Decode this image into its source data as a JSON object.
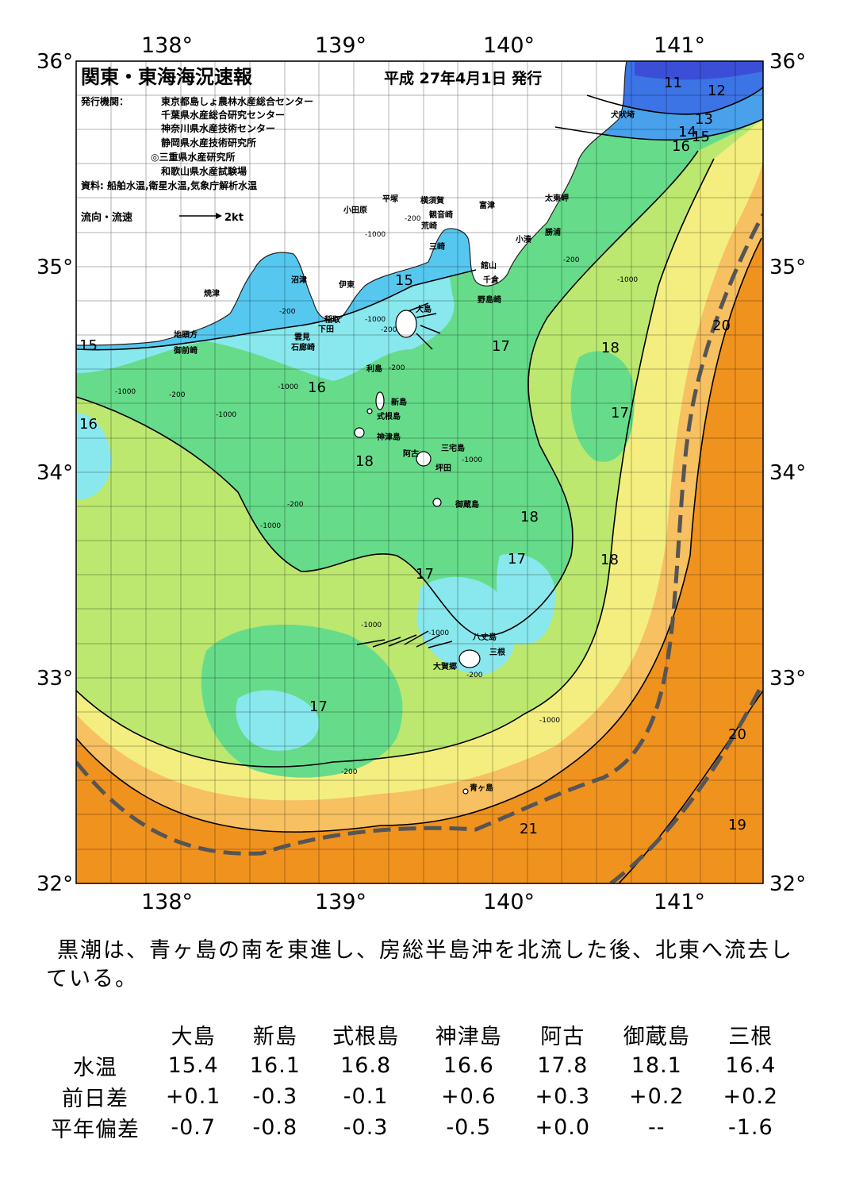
{
  "map": {
    "title": "関東・東海海況速報",
    "issue_date": "平成 27年4月1日 発行",
    "publisher_label": "発行機関：",
    "publishers": [
      "東京都島しょ農林水産総合センター",
      "千葉県水産総合研究センター",
      "神奈川県水産技術センター",
      "静岡県水産技術研究所",
      "◎三重県水産研究所",
      "和歌山県水産試験場"
    ],
    "source": "資料: 船舶水温,衛星水温,気象庁解析水温",
    "legend_label": "流向・流速",
    "legend_scale": "2kt",
    "lon_ticks": [
      "138°",
      "139°",
      "140°",
      "141°"
    ],
    "lat_ticks": [
      "36°",
      "35°",
      "34°",
      "33°",
      "32°"
    ],
    "place_names": [
      "犬吠埼",
      "太東岬",
      "勝浦",
      "小湊",
      "富津",
      "館山",
      "千倉",
      "野島崎",
      "横須賀",
      "観音崎",
      "平塚",
      "荒崎",
      "三崎",
      "小田原",
      "沼津",
      "伊東",
      "稲取",
      "下田",
      "雲見",
      "石廊崎",
      "焼津",
      "地頭方",
      "御前崎",
      "大島",
      "利島",
      "新島",
      "式根島",
      "神津島",
      "三宅島",
      "阿古",
      "坪田",
      "御蔵島",
      "八丈島",
      "三根",
      "大賀郷",
      "青ヶ島"
    ],
    "isotherm_labels": [
      "11",
      "12",
      "13",
      "14",
      "15",
      "16",
      "15",
      "15",
      "17",
      "18",
      "16",
      "16",
      "17",
      "18",
      "18",
      "17",
      "18",
      "17",
      "17",
      "20",
      "20",
      "21",
      "19"
    ],
    "depth_labels": [
      "-200",
      "-1000",
      "-200",
      "-1000",
      "-200",
      "-200",
      "-1000",
      "-1000",
      "-200",
      "-1000",
      "-200",
      "-1000",
      "-1000",
      "-200",
      "-1000",
      "-1000",
      "-1000",
      "-200",
      "-1000",
      "-200"
    ],
    "colors": {
      "sea_12": "#3a4fd6",
      "sea_13": "#3c74e6",
      "sea_14": "#49a1ec",
      "sea_15": "#56c8f0",
      "sea_16": "#88e8ee",
      "sea_17": "#66dc8a",
      "sea_18": "#bce870",
      "sea_19": "#f4ee80",
      "sea_20": "#f7c060",
      "sea_21": "#f0921e",
      "kuroshio_axis": "#555555",
      "land": "#ffffff"
    }
  },
  "summary": "黒潮は、青ヶ島の南を東進し、房総半島沖を北流した後、北東へ流去している。",
  "table": {
    "stations": [
      "大島",
      "新島",
      "式根島",
      "神津島",
      "阿古",
      "御蔵島",
      "三根"
    ],
    "rows": [
      {
        "label": "水温",
        "values": [
          "15.4",
          "16.1",
          "16.8",
          "16.6",
          "17.8",
          "18.1",
          "16.4"
        ]
      },
      {
        "label": "前日差",
        "values": [
          "+0.1",
          "-0.3",
          "-0.1",
          "+0.6",
          "+0.3",
          "+0.2",
          "+0.2"
        ]
      },
      {
        "label": "平年偏差",
        "values": [
          "-0.7",
          "-0.8",
          "-0.3",
          "-0.5",
          "+0.0",
          "--",
          "-1.6"
        ]
      }
    ]
  }
}
